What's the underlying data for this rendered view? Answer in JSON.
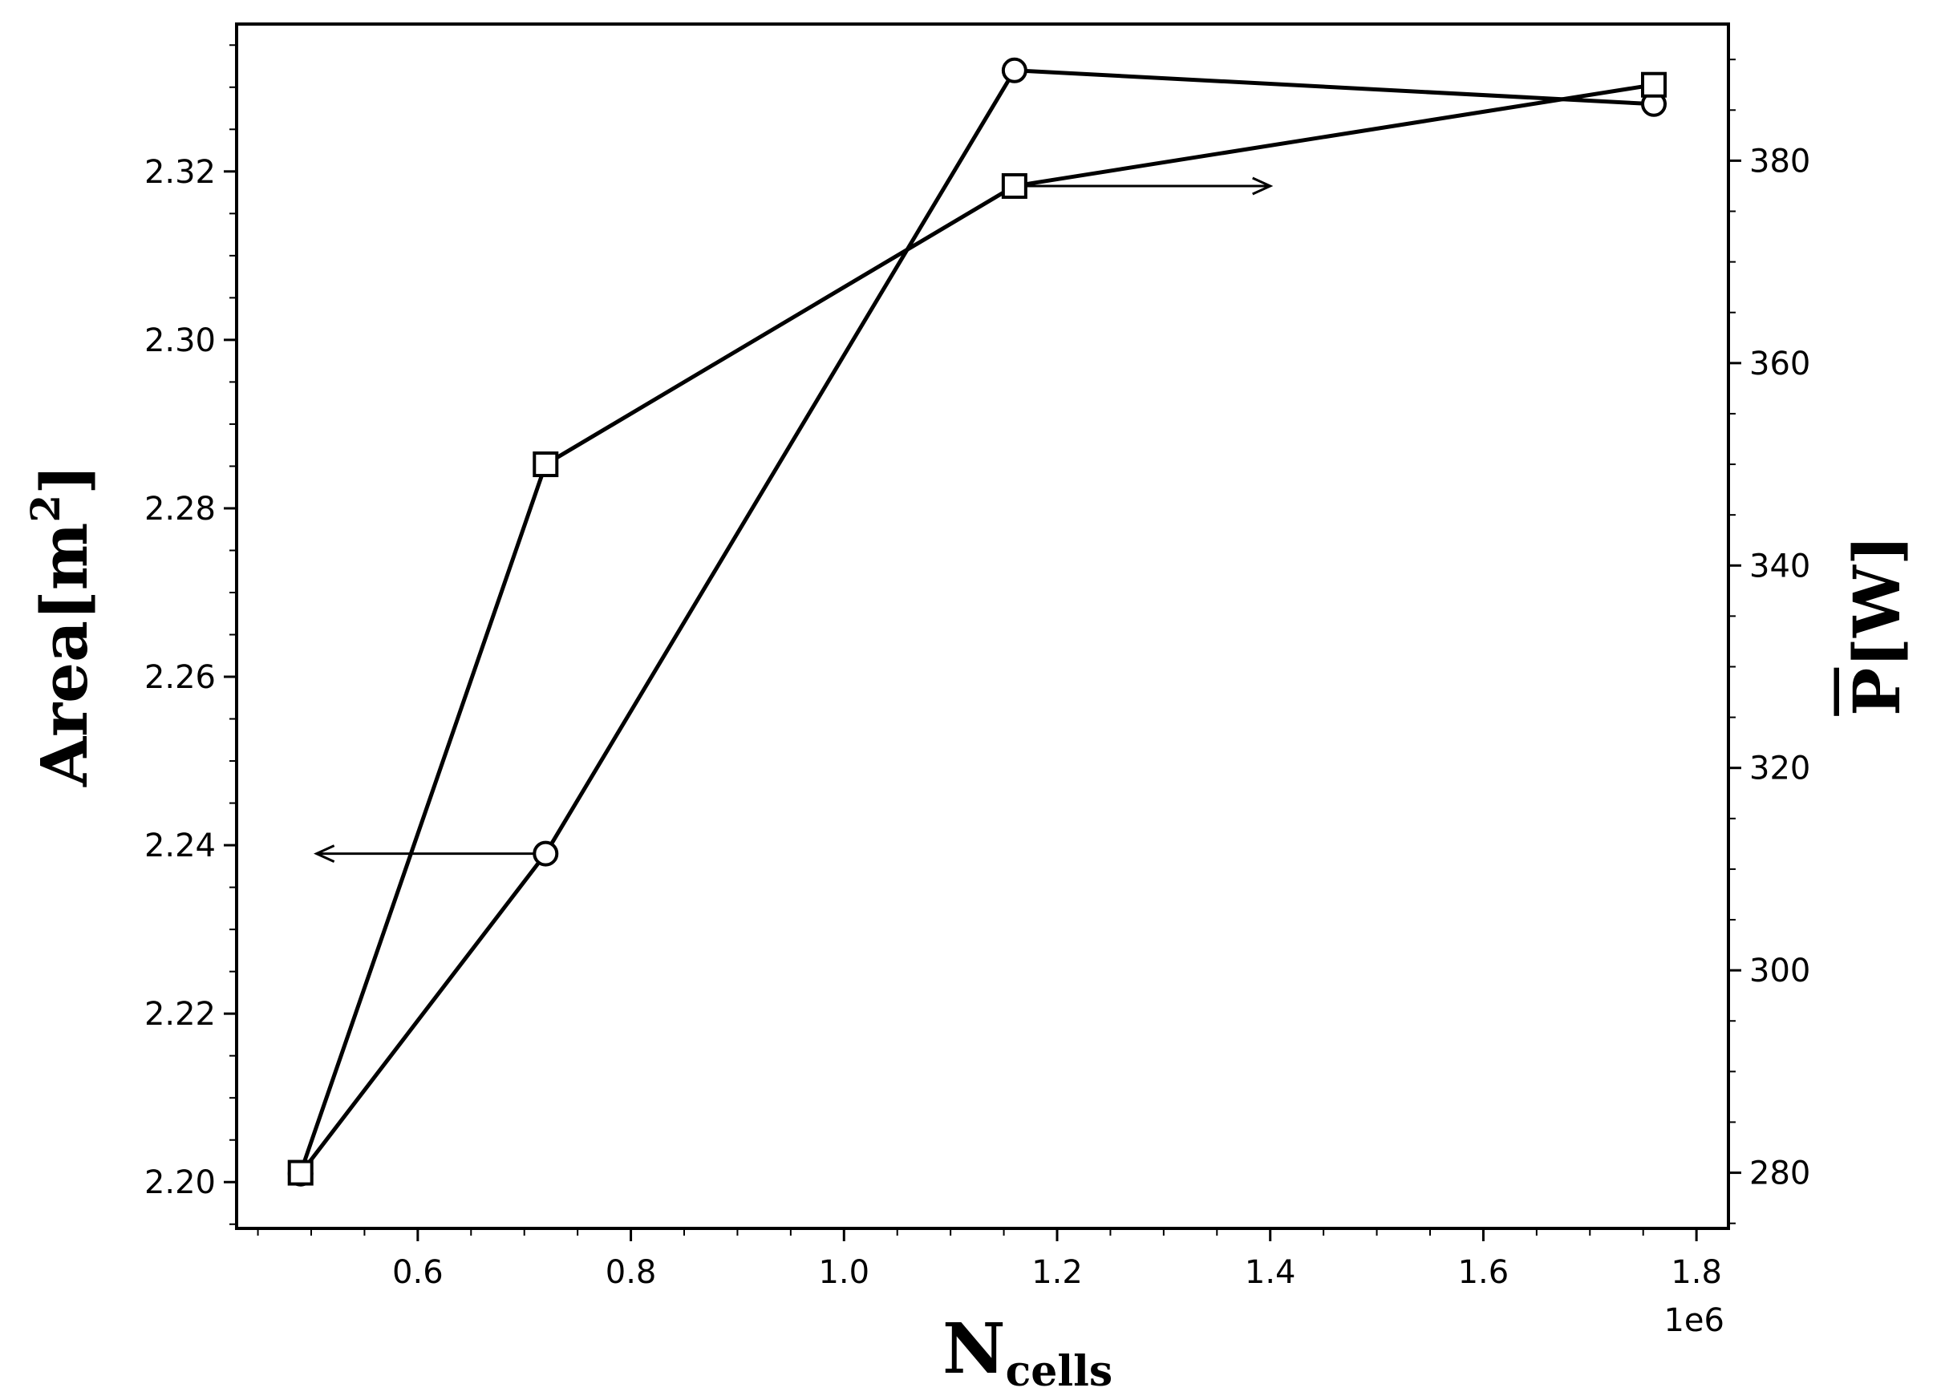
{
  "chart_data": {
    "type": "line",
    "xlabel": "N",
    "xlabel_sub": "cells",
    "x_multiplier": "1e6",
    "xlim": [
      0.43,
      1.83
    ],
    "x_ticks": [
      0.6,
      0.8,
      1.0,
      1.2,
      1.4,
      1.6,
      1.8
    ],
    "x_tick_labels": [
      "0.6",
      "0.8",
      "1.0",
      "1.2",
      "1.4",
      "1.6",
      "1.8"
    ],
    "y_left": {
      "label": "Area[m",
      "label_sup": "2",
      "label_close": "]",
      "ylim": [
        2.1945,
        2.3375
      ],
      "ticks": [
        2.2,
        2.22,
        2.24,
        2.26,
        2.28,
        2.3,
        2.32
      ],
      "tick_labels": [
        "2.20",
        "2.22",
        "2.24",
        "2.26",
        "2.28",
        "2.30",
        "2.32"
      ]
    },
    "y_right": {
      "label": "P",
      "label_unit": "[W]",
      "ylim": [
        274.5,
        393.5
      ],
      "ticks": [
        280,
        300,
        320,
        340,
        360,
        380
      ],
      "tick_labels": [
        "280",
        "300",
        "320",
        "340",
        "360",
        "380"
      ]
    },
    "grid": false,
    "series": [
      {
        "axis": "left",
        "marker": "circle",
        "x": [
          0.49,
          0.72,
          1.16,
          1.76
        ],
        "y": [
          2.201,
          2.239,
          2.332,
          2.328
        ],
        "arrow": "left"
      },
      {
        "axis": "right",
        "marker": "square",
        "x": [
          0.49,
          0.72,
          1.16,
          1.76
        ],
        "y": [
          280,
          350,
          377.5,
          387.5
        ],
        "arrow": "right"
      }
    ]
  }
}
